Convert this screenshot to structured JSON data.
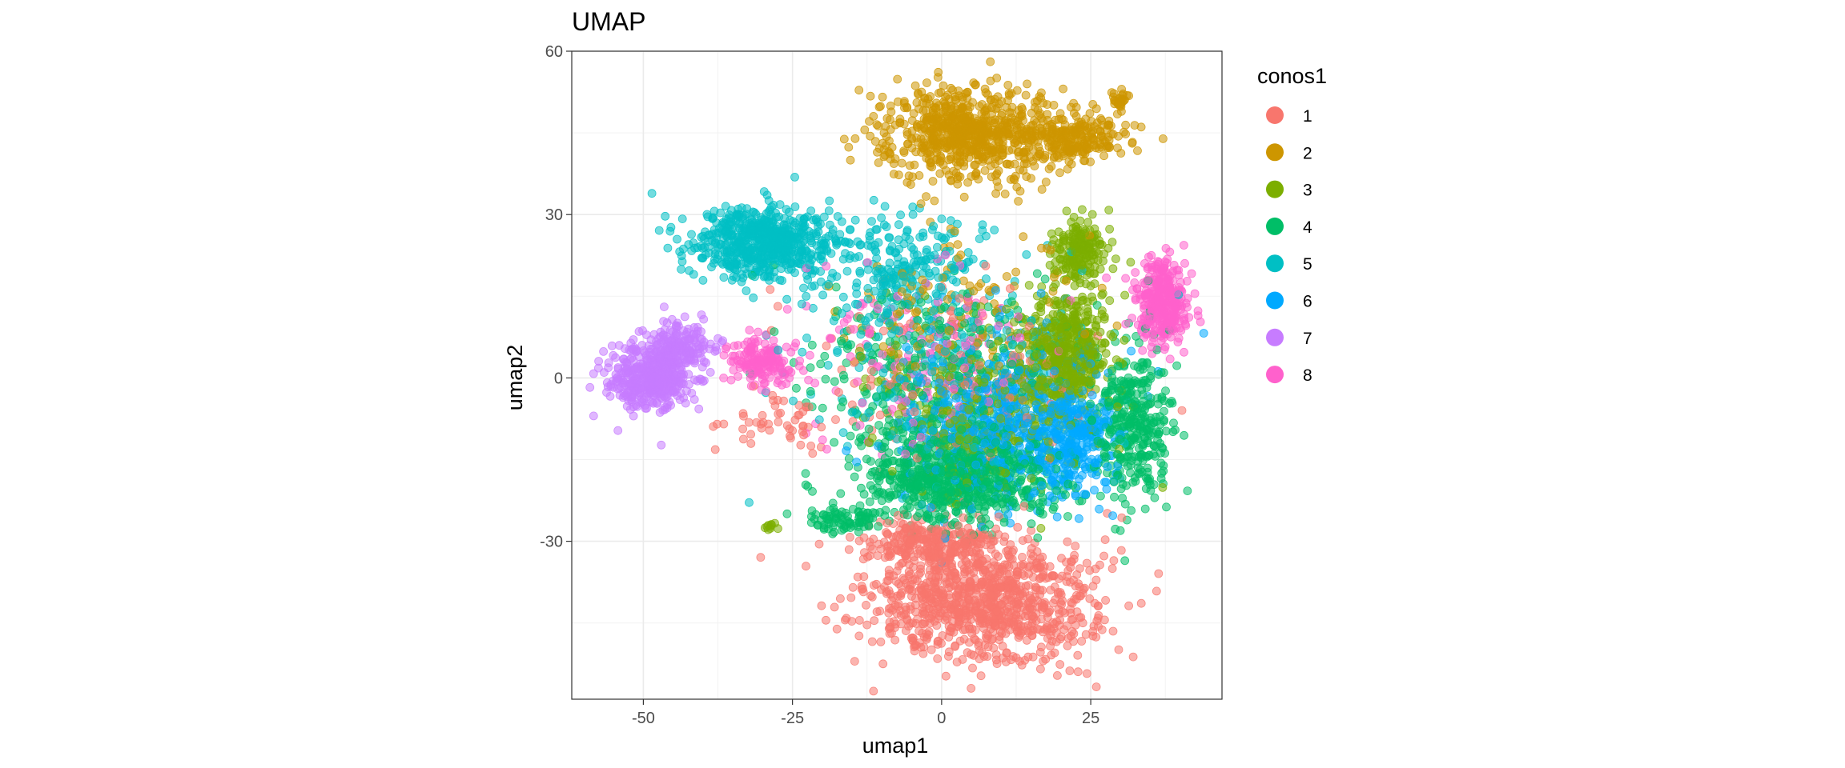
{
  "chart_data": {
    "type": "scatter",
    "title": "UMAP",
    "xlabel": "umap1",
    "ylabel": "umap2",
    "xlim": [
      -62,
      47
    ],
    "ylim": [
      -59,
      60
    ],
    "x_ticks": [
      -50,
      -25,
      0,
      25
    ],
    "x_tick_labels": [
      "-50",
      "-25",
      "0",
      "25"
    ],
    "y_ticks": [
      -30,
      0,
      30,
      60
    ],
    "y_tick_labels": [
      "-30",
      "0",
      "30",
      "60"
    ],
    "grid": true,
    "theme": "bw",
    "legend": {
      "title": "conos1",
      "placement": "right",
      "entries": [
        "1",
        "2",
        "3",
        "4",
        "5",
        "6",
        "7",
        "8"
      ]
    },
    "series": [
      {
        "name": "1",
        "color": "#F8766D",
        "n_points": 1400,
        "clusters": [
          {
            "cx": 7,
            "cy": -41,
            "rx": 17,
            "ry": 10,
            "w": 1.0
          },
          {
            "cx": -2,
            "cy": -30,
            "rx": 10,
            "ry": 4,
            "w": 0.25
          },
          {
            "cx": 0,
            "cy": 2,
            "rx": 22,
            "ry": 16,
            "w": 0.12
          },
          {
            "cx": -28,
            "cy": -8,
            "rx": 9,
            "ry": 5,
            "w": 0.05
          }
        ]
      },
      {
        "name": "2",
        "color": "#CD9600",
        "n_points": 1100,
        "clusters": [
          {
            "cx": 4,
            "cy": 45,
            "rx": 12,
            "ry": 8,
            "w": 1.0
          },
          {
            "cx": 22,
            "cy": 44,
            "rx": 9,
            "ry": 4,
            "w": 0.35
          },
          {
            "cx": 30,
            "cy": 51,
            "rx": 1.5,
            "ry": 1.5,
            "w": 0.04
          },
          {
            "cx": 5,
            "cy": 12,
            "rx": 20,
            "ry": 14,
            "w": 0.18
          }
        ]
      },
      {
        "name": "3",
        "color": "#7CAE00",
        "n_points": 1000,
        "clusters": [
          {
            "cx": 21,
            "cy": 5,
            "rx": 6,
            "ry": 10,
            "w": 1.0
          },
          {
            "cx": 23,
            "cy": 23,
            "rx": 4,
            "ry": 5,
            "w": 0.35
          },
          {
            "cx": 7,
            "cy": -6,
            "rx": 16,
            "ry": 14,
            "w": 0.6
          },
          {
            "cx": -29,
            "cy": -27,
            "rx": 1,
            "ry": 1,
            "w": 0.02
          }
        ]
      },
      {
        "name": "4",
        "color": "#00BE67",
        "n_points": 1500,
        "clusters": [
          {
            "cx": 3,
            "cy": -18,
            "rx": 15,
            "ry": 8,
            "w": 1.0
          },
          {
            "cx": 32,
            "cy": -8,
            "rx": 6,
            "ry": 13,
            "w": 0.45
          },
          {
            "cx": -2,
            "cy": 2,
            "rx": 20,
            "ry": 14,
            "w": 0.35
          },
          {
            "cx": -16,
            "cy": -26,
            "rx": 6,
            "ry": 2,
            "w": 0.1
          }
        ]
      },
      {
        "name": "5",
        "color": "#00BFC4",
        "n_points": 1100,
        "clusters": [
          {
            "cx": -30,
            "cy": 25,
            "rx": 11,
            "ry": 6,
            "w": 1.0
          },
          {
            "cx": -6,
            "cy": 20,
            "rx": 14,
            "ry": 10,
            "w": 0.4
          },
          {
            "cx": 0,
            "cy": 0,
            "rx": 22,
            "ry": 16,
            "w": 0.35
          }
        ]
      },
      {
        "name": "6",
        "color": "#00A9FF",
        "n_points": 800,
        "clusters": [
          {
            "cx": 10,
            "cy": -8,
            "rx": 16,
            "ry": 14,
            "w": 1.0
          },
          {
            "cx": 22,
            "cy": -12,
            "rx": 6,
            "ry": 8,
            "w": 0.4
          }
        ]
      },
      {
        "name": "7",
        "color": "#C77CFF",
        "n_points": 600,
        "clusters": [
          {
            "cx": -49,
            "cy": 0,
            "rx": 6,
            "ry": 5,
            "w": 1.0
          },
          {
            "cx": -44,
            "cy": 6,
            "rx": 5,
            "ry": 4,
            "w": 0.4
          }
        ]
      },
      {
        "name": "8",
        "color": "#FF61CC",
        "n_points": 650,
        "clusters": [
          {
            "cx": 37,
            "cy": 14,
            "rx": 4,
            "ry": 7,
            "w": 1.0
          },
          {
            "cx": -30,
            "cy": 3,
            "rx": 5,
            "ry": 4,
            "w": 0.45
          },
          {
            "cx": -5,
            "cy": 3,
            "rx": 18,
            "ry": 14,
            "w": 0.45
          }
        ]
      }
    ]
  }
}
